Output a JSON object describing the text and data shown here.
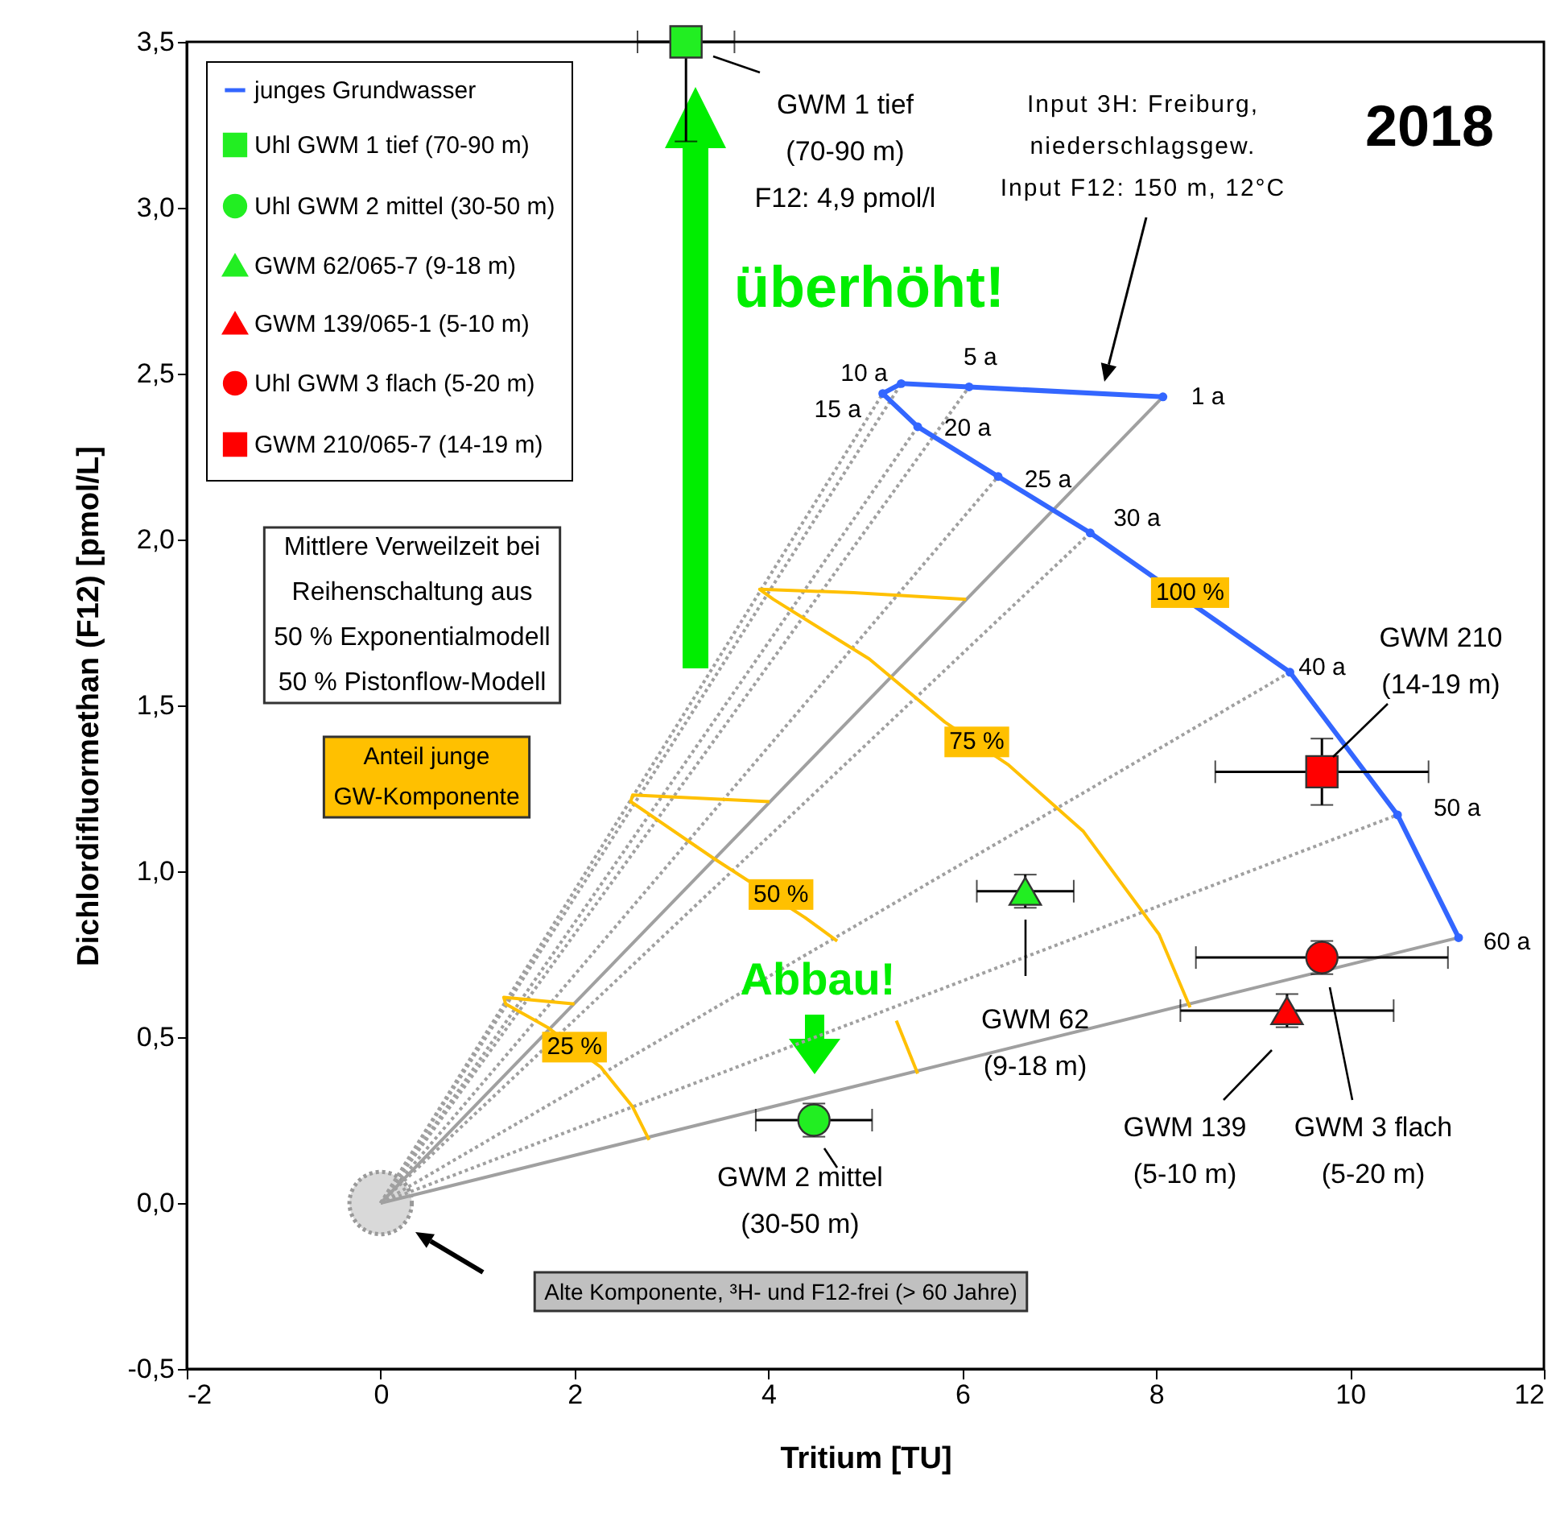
{
  "chart_data": {
    "type": "scatter",
    "title": "2018",
    "xlabel": "Tritium  [TU]",
    "ylabel": "Dichlordifluormethan (F12) [pmol/L]",
    "xlim": [
      -2,
      12
    ],
    "xticks": [
      -2,
      0,
      2,
      4,
      6,
      8,
      10,
      12
    ],
    "ylim": [
      -0.5,
      3.5
    ],
    "yticks": [
      {
        "value": -0.5,
        "label": "-0,5"
      },
      {
        "value": 0,
        "label": "0,0"
      },
      {
        "value": 0.5,
        "label": "0,5"
      },
      {
        "value": 1,
        "label": "1,0"
      },
      {
        "value": 1.5,
        "label": "1,5"
      },
      {
        "value": 2,
        "label": "2,0"
      },
      {
        "value": 2.5,
        "label": "2,5"
      },
      {
        "value": 3,
        "label": "3,0"
      },
      {
        "value": 3.5,
        "label": "3,5"
      }
    ],
    "legend": "top left",
    "series": [
      {
        "type": "scatter",
        "color": "#d9d9d9",
        "marker": "circle",
        "x": [
          0
        ],
        "values": [
          0
        ]
      },
      {
        "type": "line",
        "color": "#a0a0a0",
        "line_style": "solid",
        "x": [
          0,
          8.07
        ],
        "values": [
          0,
          2.43
        ]
      },
      {
        "type": "line",
        "color": "#a0a0a0",
        "line_style": "dotted",
        "x": [
          0,
          6.07
        ],
        "values": [
          0,
          2.46
        ]
      },
      {
        "type": "line",
        "color": "#a0a0a0",
        "line_style": "dotted",
        "x": [
          0,
          5.37
        ],
        "values": [
          0,
          2.47
        ]
      },
      {
        "type": "line",
        "color": "#a0a0a0",
        "line_style": "dotted",
        "x": [
          0,
          5.18
        ],
        "values": [
          0,
          2.44
        ]
      },
      {
        "type": "line",
        "color": "#a0a0a0",
        "line_style": "dotted",
        "x": [
          0,
          5.54
        ],
        "values": [
          0,
          2.34
        ]
      },
      {
        "type": "line",
        "color": "#a0a0a0",
        "line_style": "dotted",
        "x": [
          0,
          6.37
        ],
        "values": [
          0,
          2.19
        ]
      },
      {
        "type": "line",
        "color": "#a0a0a0",
        "line_style": "dotted",
        "x": [
          0,
          7.32
        ],
        "values": [
          0,
          2.02
        ]
      },
      {
        "type": "line",
        "color": "#a0a0a0",
        "line_style": "dotted",
        "x": [
          0,
          9.38
        ],
        "values": [
          0,
          1.6
        ]
      },
      {
        "type": "line",
        "color": "#a0a0a0",
        "line_style": "dotted",
        "x": [
          0,
          10.49
        ],
        "values": [
          0,
          1.17
        ]
      },
      {
        "type": "line",
        "color": "#a0a0a0",
        "line_style": "solid",
        "x": [
          0,
          11.12
        ],
        "values": [
          0,
          0.8
        ]
      },
      {
        "type": "line",
        "color": "#ffc000",
        "line_style": "solid",
        "x": [
          6.04,
          4.88,
          3.91,
          4.05,
          5.04,
          5.82,
          6.48,
          7.25,
          8.03,
          8.35
        ],
        "values": [
          1.82,
          1.84,
          1.85,
          1.82,
          1.64,
          1.45,
          1.32,
          1.12,
          0.81,
          0.59
        ]
      },
      {
        "type": "line",
        "color": "#ffc000",
        "line_style": "solid",
        "x": [
          4.01,
          2.6,
          2.58,
          3.43,
          4.38,
          4.71
        ],
        "values": [
          1.21,
          1.23,
          1.21,
          1.04,
          0.86,
          0.79
        ]
      },
      {
        "type": "line",
        "color": "#ffc000",
        "line_style": "solid",
        "x": [
          5.32,
          5.54
        ],
        "values": [
          0.55,
          0.39
        ]
      },
      {
        "type": "line",
        "color": "#ffc000",
        "line_style": "solid",
        "x": [
          2.0,
          1.27,
          1.29,
          1.72,
          2.27,
          2.6,
          2.77
        ],
        "values": [
          0.6,
          0.62,
          0.6,
          0.53,
          0.41,
          0.29,
          0.19
        ]
      },
      {
        "type": "line",
        "name": "junges Grundwasser",
        "color": "#3366ff",
        "marker": "circle",
        "line_style": "solid",
        "x": [
          8.07,
          6.07,
          5.37,
          5.18,
          5.54,
          6.37,
          7.32,
          9.38,
          10.49,
          11.12
        ],
        "values": [
          2.43,
          2.46,
          2.47,
          2.44,
          2.34,
          2.19,
          2.02,
          1.6,
          1.17,
          0.8
        ]
      },
      {
        "type": "scatter",
        "name": "Uhl GWM 1 tief (70-90 m)",
        "color": "#22ee22",
        "marker": "square",
        "x": [
          3.15
        ],
        "values": [
          3.5
        ],
        "errors": [
          [
            3.2,
            3.5
          ]
        ],
        "xerrors": [
          0.5
        ]
      },
      {
        "type": "scatter",
        "name": "Uhl GWM 2 mittel (30-50 m)",
        "color": "#22ee22",
        "marker": "circle",
        "x": [
          4.47
        ],
        "values": [
          0.25
        ],
        "errors": [
          0.05
        ],
        "xerrors": [
          0.6
        ]
      },
      {
        "type": "scatter",
        "name": "GWM 62/065-7 (9-18 m)",
        "color": "#22ee22",
        "marker": "triangle",
        "x": [
          6.65
        ],
        "values": [
          0.94
        ],
        "errors": [
          0.05
        ],
        "xerrors": [
          0.5
        ]
      },
      {
        "type": "scatter",
        "name": "GWM 139/065-1 (5-10 m)",
        "color": "#ff0000",
        "marker": "triangle",
        "x": [
          9.35
        ],
        "values": [
          0.58
        ],
        "errors": [
          0.05
        ],
        "xerrors": [
          1.1
        ]
      },
      {
        "type": "scatter",
        "name": "Uhl GWM 3 flach (5-20 m)",
        "color": "#ff0000",
        "marker": "circle",
        "x": [
          9.71
        ],
        "values": [
          0.74
        ],
        "errors": [
          0.05
        ],
        "xerrors": [
          1.3
        ]
      },
      {
        "type": "scatter",
        "name": "GWM 210/065-7 (14-19 m)",
        "color": "#ff0000",
        "marker": "square",
        "x": [
          9.71
        ],
        "values": [
          1.3
        ],
        "errors": [
          0.1
        ],
        "xerrors": [
          1.1
        ]
      }
    ],
    "annotations": [
      {
        "text": "1 a",
        "x": 8.07,
        "y": 2.43
      },
      {
        "text": "5 a",
        "x": 6.07,
        "y": 2.46
      },
      {
        "text": "10 a",
        "x": 5.37,
        "y": 2.47
      },
      {
        "text": "15 a",
        "x": 5.18,
        "y": 2.44
      },
      {
        "text": "20 a",
        "x": 5.54,
        "y": 2.34
      },
      {
        "text": "25 a",
        "x": 6.37,
        "y": 2.19
      },
      {
        "text": "30 a",
        "x": 7.32,
        "y": 2.02
      },
      {
        "text": "40 a",
        "x": 9.38,
        "y": 1.6
      },
      {
        "text": "50 a",
        "x": 10.49,
        "y": 1.17
      },
      {
        "text": "60 a",
        "x": 11.12,
        "y": 0.8
      },
      {
        "text": "100 %",
        "x": 8.35,
        "y": 1.84
      },
      {
        "text": "75 %",
        "x": 6.15,
        "y": 1.39
      },
      {
        "text": "50 %",
        "x": 4.13,
        "y": 0.93
      },
      {
        "text": "25 %",
        "x": 2.0,
        "y": 0.47
      },
      "GWM 1 tief\n(70-90 m)\nF12: 4,9 pmol/l",
      "GWM 210\n(14-19 m)",
      "GWM 62\n(9-18 m)",
      "GWM 139\n(5-10 m)",
      "GWM 3 flach\n(5-20 m)",
      "GWM 2 mittel\n(30-50 m)",
      "Input 3H: Freiburg,\nniederschlagsgew.\nInput F12: 150 m, 12°C",
      "Alte Komponente, ³H- und F12-frei (> 60 Jahre)",
      "überhöht!",
      "Abbau!",
      "Mittlere Verweilzeit bei\nReihenschaltung aus\n50 % Exponentialmodell\n50 % Pistonflow-Modell",
      "Anteil junge\nGW-Komponente"
    ]
  }
}
